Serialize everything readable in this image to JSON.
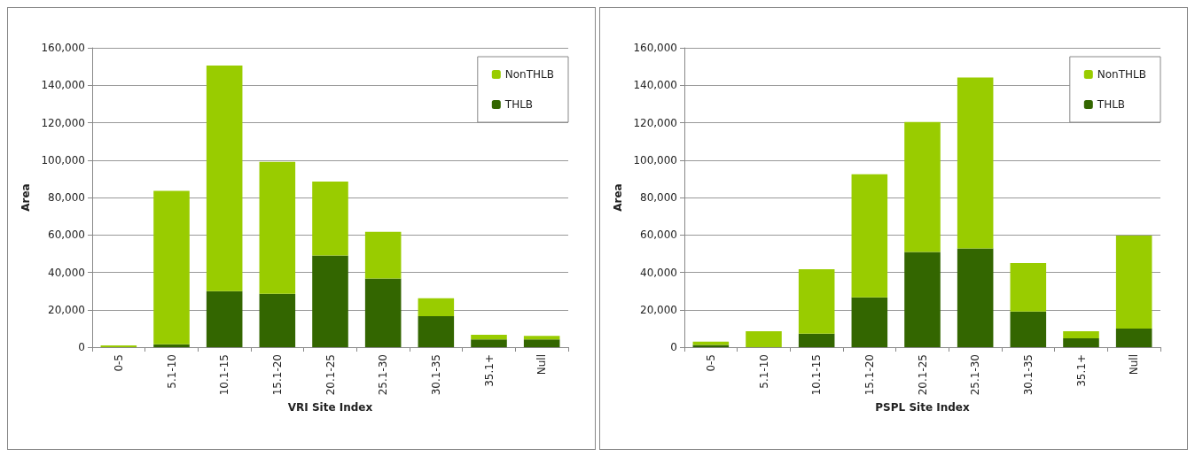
{
  "chart_data": [
    {
      "type": "bar",
      "stacked": true,
      "xlabel": "VRI Site Index",
      "ylabel": "Area",
      "categories": [
        "0-5",
        "5.1-10",
        "10.1-15",
        "15.1-20",
        "20.1-25",
        "25.1-30",
        "30.1-35",
        "35.1+",
        "Null"
      ],
      "series": [
        {
          "name": "THLB",
          "color": "#336600",
          "values": [
            0,
            1500,
            30000,
            28500,
            49000,
            36700,
            16600,
            4200,
            4200
          ]
        },
        {
          "name": "NonTHLB",
          "color": "#99cc00",
          "values": [
            1000,
            82000,
            120500,
            70500,
            39500,
            24900,
            9500,
            2400,
            1800
          ]
        }
      ],
      "ylim": [
        0,
        160000
      ],
      "yticks": [
        0,
        {
          "value": 20000,
          "label": "20,000"
        },
        {
          "value": 40000,
          "label": "40,000"
        },
        {
          "value": 60000,
          "label": "60,000"
        },
        {
          "value": 80000,
          "label": "80,000"
        },
        {
          "value": 100000,
          "label": "100,000"
        },
        {
          "value": 120000,
          "label": "120,000"
        },
        {
          "value": 140000,
          "label": "140,000"
        },
        {
          "value": 160000,
          "label": "160,000"
        }
      ],
      "grid": "y",
      "legend": "top right"
    },
    {
      "type": "bar",
      "stacked": true,
      "xlabel": "PSPL Site Index",
      "ylabel": "Area",
      "categories": [
        "0-5",
        "5.1-10",
        "10.1-15",
        "15.1-20",
        "20.1-25",
        "25.1-30",
        "30.1-35",
        "35.1+",
        "Null"
      ],
      "series": [
        {
          "name": "THLB",
          "color": "#336600",
          "values": [
            1200,
            0,
            7200,
            26600,
            50900,
            52800,
            19000,
            4700,
            9900
          ]
        },
        {
          "name": "NonTHLB",
          "color": "#99cc00",
          "values": [
            1700,
            8500,
            34400,
            65800,
            69500,
            91300,
            26000,
            3800,
            49700
          ]
        }
      ],
      "ylim": [
        0,
        160000
      ],
      "yticks": [
        0,
        {
          "value": 20000,
          "label": "20,000"
        },
        {
          "value": 40000,
          "label": "40,000"
        },
        {
          "value": 60000,
          "label": "60,000"
        },
        {
          "value": 80000,
          "label": "80,000"
        },
        {
          "value": 100000,
          "label": "100,000"
        },
        {
          "value": 120000,
          "label": "120,000"
        },
        {
          "value": 140000,
          "label": "140,000"
        },
        {
          "value": 160000,
          "label": "160,000"
        }
      ],
      "grid": "y",
      "legend": "top right"
    }
  ]
}
